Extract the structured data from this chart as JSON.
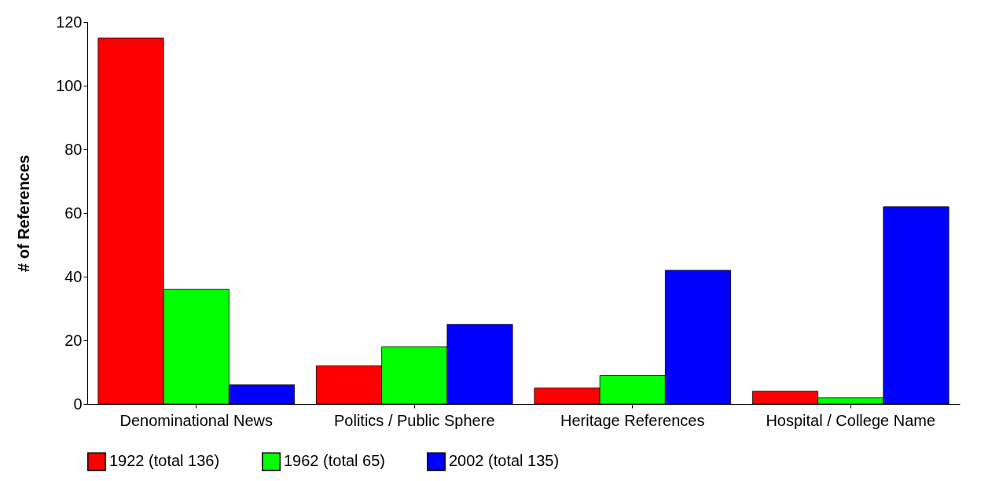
{
  "chart_data": {
    "type": "bar",
    "ylabel": "# of References",
    "categories": [
      "Denominational News",
      "Politics / Public Sphere",
      "Heritage References",
      "Hospital / College Name"
    ],
    "series": [
      {
        "name": "1922 (total 136)",
        "color": "#ff0000",
        "values": [
          115,
          12,
          5,
          4
        ]
      },
      {
        "name": "1962 (total 65)",
        "color": "#00ff00",
        "values": [
          36,
          18,
          9,
          2
        ]
      },
      {
        "name": "2002 (total 135)",
        "color": "#0000ff",
        "values": [
          6,
          25,
          42,
          62
        ]
      }
    ],
    "ylim": [
      0,
      120
    ],
    "yticks": [
      0,
      20,
      40,
      60,
      80,
      100,
      120
    ],
    "grid": false,
    "legend": "bottom"
  }
}
